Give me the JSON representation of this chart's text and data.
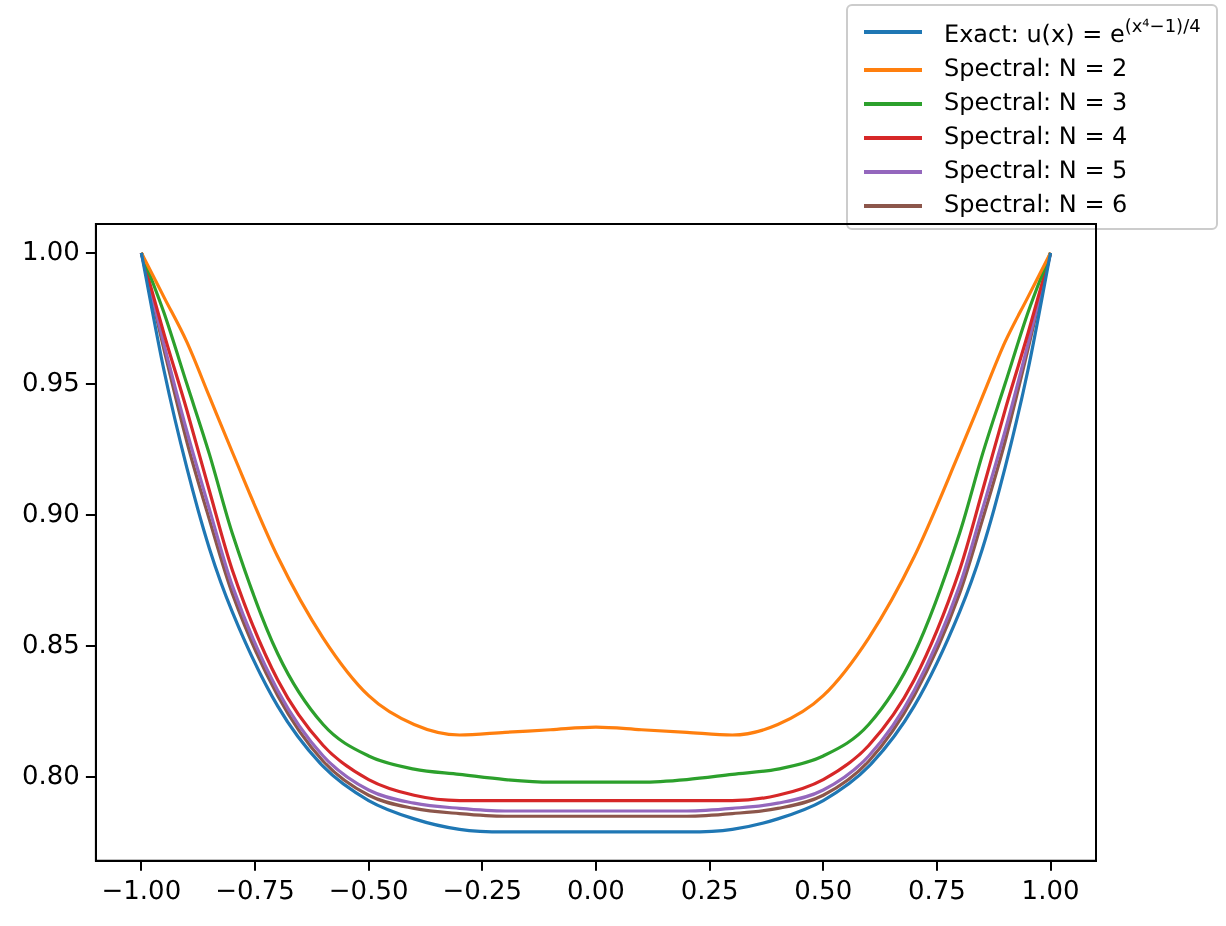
{
  "chart_data": {
    "type": "line",
    "x": [
      -1,
      -0.95,
      -0.9,
      -0.85,
      -0.8,
      -0.7,
      -0.6,
      -0.5,
      -0.4,
      -0.3,
      -0.2,
      -0.1,
      0,
      0.1,
      0.2,
      0.3,
      0.4,
      0.5,
      0.6,
      0.7,
      0.8,
      0.85,
      0.9,
      0.95,
      1
    ],
    "series": [
      {
        "name": "Exact: u(x) = e$^{(x⁴−1)/4}$",
        "color": "#1f77b4",
        "values": [
          1,
          0.955,
          0.918,
          0.887,
          0.863,
          0.827,
          0.804,
          0.791,
          0.784,
          0.78,
          0.779,
          0.779,
          0.779,
          0.779,
          0.779,
          0.78,
          0.784,
          0.791,
          0.804,
          0.827,
          0.863,
          0.887,
          0.918,
          0.955,
          1
        ]
      },
      {
        "name": "Spectral: N = 2",
        "color": "#ff7f0e",
        "values": [
          1,
          0.983,
          0.966,
          0.945,
          0.924,
          0.884,
          0.853,
          0.831,
          0.82,
          0.816,
          0.817,
          0.818,
          0.819,
          0.818,
          0.817,
          0.816,
          0.82,
          0.831,
          0.853,
          0.884,
          0.924,
          0.945,
          0.966,
          0.983,
          1
        ]
      },
      {
        "name": "Spectral: N = 3",
        "color": "#2ca02c",
        "values": [
          1,
          0.977,
          0.95,
          0.923,
          0.893,
          0.847,
          0.82,
          0.808,
          0.803,
          0.801,
          0.799,
          0.798,
          0.798,
          0.798,
          0.799,
          0.801,
          0.803,
          0.808,
          0.82,
          0.847,
          0.893,
          0.923,
          0.95,
          0.977,
          1
        ]
      },
      {
        "name": "Spectral: N = 4",
        "color": "#d62728",
        "values": [
          1,
          0.969,
          0.94,
          0.909,
          0.879,
          0.837,
          0.812,
          0.799,
          0.793,
          0.791,
          0.791,
          0.791,
          0.791,
          0.791,
          0.791,
          0.791,
          0.793,
          0.799,
          0.812,
          0.837,
          0.879,
          0.909,
          0.94,
          0.969,
          1
        ]
      },
      {
        "name": "Spectral: N = 5",
        "color": "#9467bd",
        "values": [
          1,
          0.965,
          0.932,
          0.902,
          0.873,
          0.833,
          0.808,
          0.795,
          0.79,
          0.788,
          0.787,
          0.787,
          0.787,
          0.787,
          0.787,
          0.788,
          0.79,
          0.795,
          0.808,
          0.833,
          0.873,
          0.902,
          0.932,
          0.965,
          1
        ]
      },
      {
        "name": "Spectral: N = 6",
        "color": "#8c564b",
        "values": [
          1,
          0.963,
          0.928,
          0.898,
          0.87,
          0.831,
          0.806,
          0.793,
          0.788,
          0.786,
          0.785,
          0.785,
          0.785,
          0.785,
          0.785,
          0.786,
          0.788,
          0.793,
          0.806,
          0.831,
          0.87,
          0.898,
          0.928,
          0.963,
          1
        ]
      }
    ],
    "xlim": [
      -1.1,
      1.1
    ],
    "ylim": [
      0.768,
      1.011
    ],
    "xticks": [
      {
        "value": -1,
        "label": "−1.00"
      },
      {
        "value": -0.75,
        "label": "−0.75"
      },
      {
        "value": -0.5,
        "label": "−0.50"
      },
      {
        "value": -0.25,
        "label": "−0.25"
      },
      {
        "value": 0,
        "label": "0.00"
      },
      {
        "value": 0.25,
        "label": "0.25"
      },
      {
        "value": 0.5,
        "label": "0.50"
      },
      {
        "value": 0.75,
        "label": "0.75"
      },
      {
        "value": 1,
        "label": "1.00"
      }
    ],
    "yticks": [
      {
        "value": 0.8,
        "label": "0.80"
      },
      {
        "value": 0.85,
        "label": "0.85"
      },
      {
        "value": 0.9,
        "label": "0.90"
      },
      {
        "value": 0.95,
        "label": "0.95"
      },
      {
        "value": 1,
        "label": "1.00"
      }
    ],
    "grid": false,
    "legend": "top right",
    "marker": "none",
    "line_style": "solid"
  }
}
